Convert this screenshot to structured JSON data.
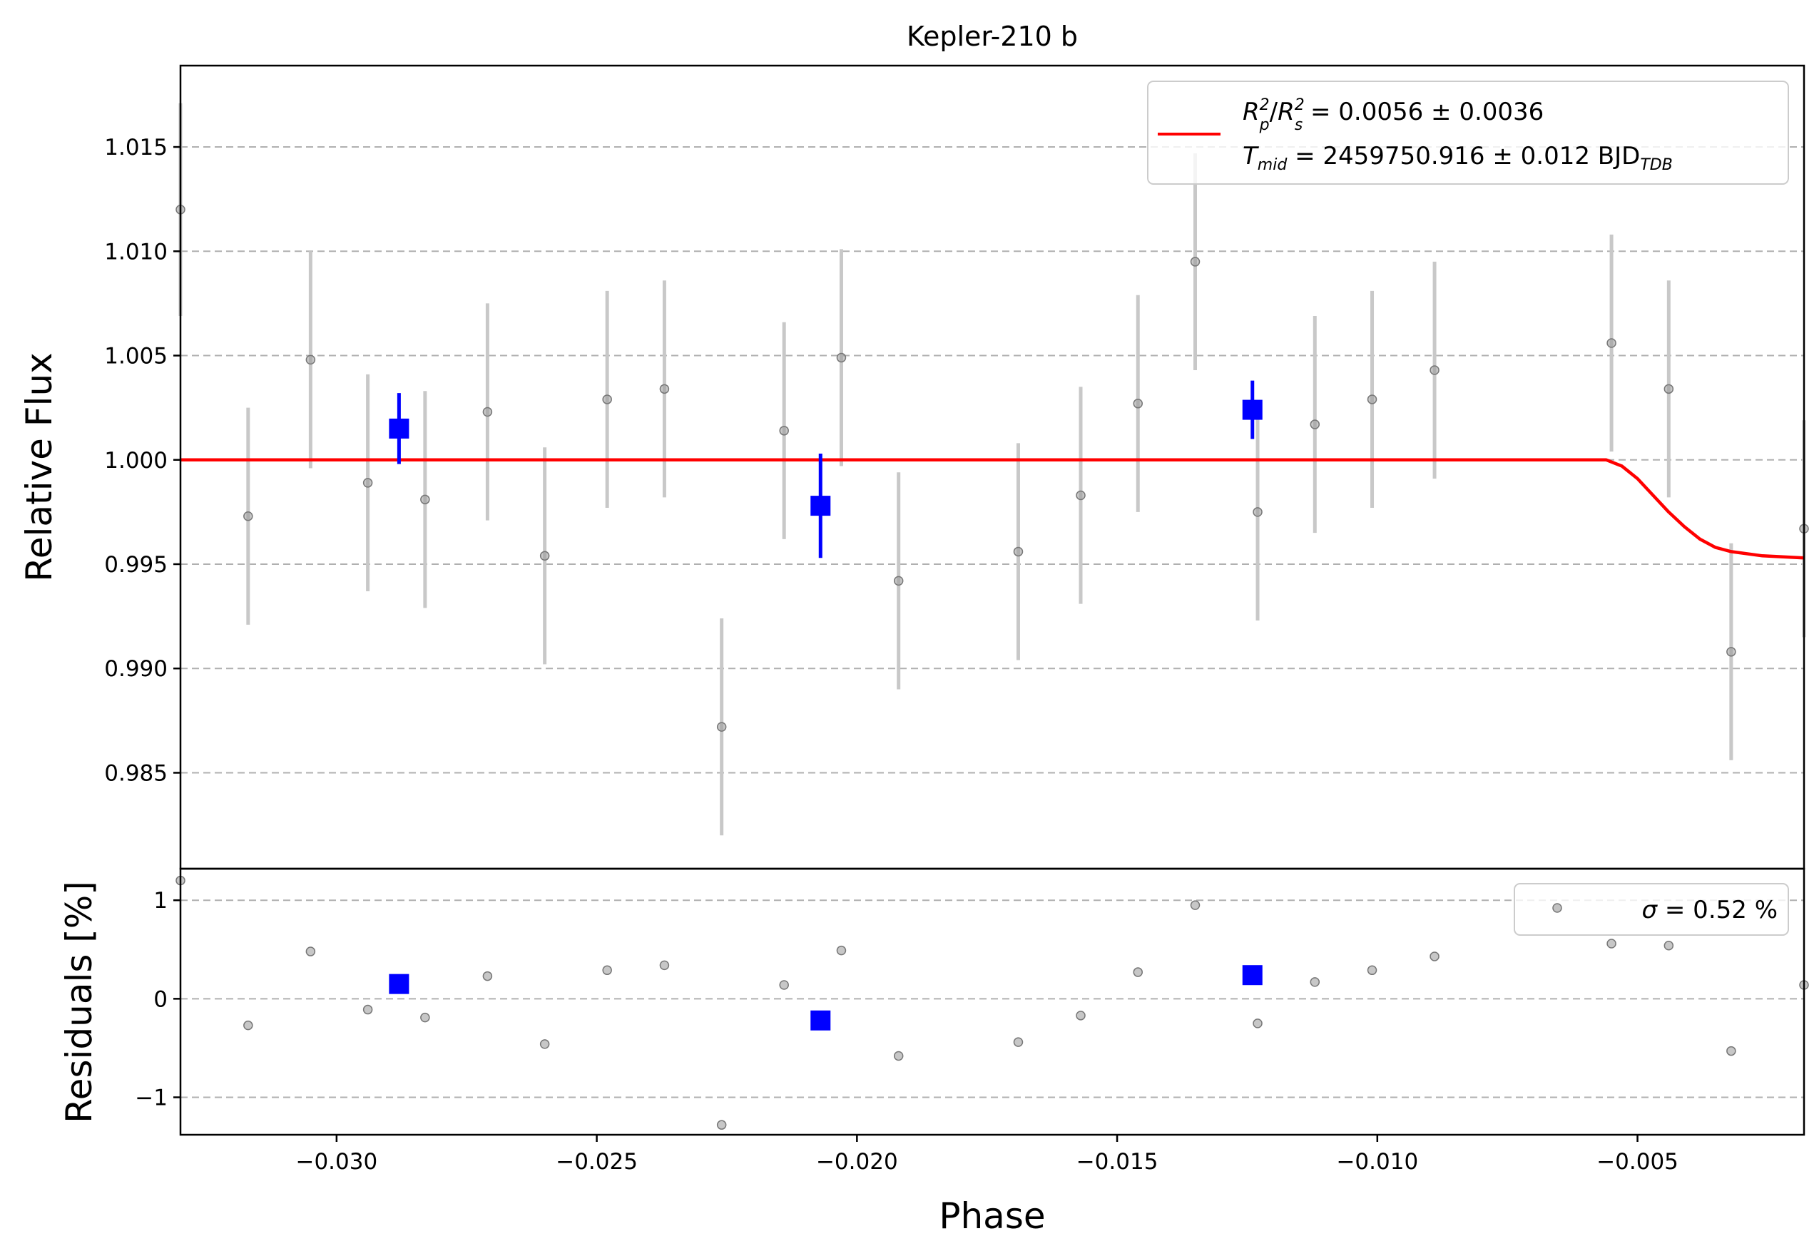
{
  "chart_data": [
    {
      "type": "scatter",
      "title": "Kepler-210 b",
      "xlabel": "",
      "ylabel": "Relative Flux",
      "xlim": [
        -0.033,
        -0.0018
      ],
      "ylim": [
        0.9804,
        1.0189
      ],
      "yticks": [
        0.985,
        0.99,
        0.995,
        1.0,
        1.005,
        1.01,
        1.015
      ],
      "ytick_labels": [
        "0.985",
        "0.990",
        "0.995",
        "1.000",
        "1.005",
        "1.010",
        "1.015"
      ],
      "grid": "horizontal-dashed",
      "legend_position": "top-right",
      "legend": {
        "line1": {
          "a": "R",
          "a_sup": "2",
          "a_sub": "p",
          "slash": "/",
          "b": "R",
          "b_sup": "2",
          "b_sub": "s",
          "value": " = 0.0056 ± 0.0036"
        },
        "line2": {
          "t": "T",
          "t_sub": "mid",
          "value": " = 2459750.916 ± 0.012 BJD",
          "value_sub": "TDB"
        }
      },
      "data_points": {
        "color": "#999999",
        "points": [
          {
            "x": -0.033,
            "y": 1.012,
            "err": 0.0051
          },
          {
            "x": -0.0317,
            "y": 0.9973,
            "err": 0.0052
          },
          {
            "x": -0.0305,
            "y": 1.0048,
            "err": 0.0052
          },
          {
            "x": -0.0294,
            "y": 0.9989,
            "err": 0.0052
          },
          {
            "x": -0.0283,
            "y": 0.9981,
            "err": 0.0052
          },
          {
            "x": -0.0271,
            "y": 1.0023,
            "err": 0.0052
          },
          {
            "x": -0.026,
            "y": 0.9954,
            "err": 0.0052
          },
          {
            "x": -0.0248,
            "y": 1.0029,
            "err": 0.0052
          },
          {
            "x": -0.0237,
            "y": 1.0034,
            "err": 0.0052
          },
          {
            "x": -0.0226,
            "y": 0.9872,
            "err": 0.0052
          },
          {
            "x": -0.0214,
            "y": 1.0014,
            "err": 0.0052
          },
          {
            "x": -0.0203,
            "y": 1.0049,
            "err": 0.0052
          },
          {
            "x": -0.0192,
            "y": 0.9942,
            "err": 0.0052
          },
          {
            "x": -0.0169,
            "y": 0.9956,
            "err": 0.0052
          },
          {
            "x": -0.0157,
            "y": 0.9983,
            "err": 0.0052
          },
          {
            "x": -0.0146,
            "y": 1.0027,
            "err": 0.0052
          },
          {
            "x": -0.0135,
            "y": 1.0095,
            "err": 0.0052
          },
          {
            "x": -0.0123,
            "y": 0.9975,
            "err": 0.0052
          },
          {
            "x": -0.0112,
            "y": 1.0017,
            "err": 0.0052
          },
          {
            "x": -0.0101,
            "y": 1.0029,
            "err": 0.0052
          },
          {
            "x": -0.0089,
            "y": 1.0043,
            "err": 0.0052
          },
          {
            "x": -0.0055,
            "y": 1.0056,
            "err": 0.0052
          },
          {
            "x": -0.0044,
            "y": 1.0034,
            "err": 0.0052
          },
          {
            "x": -0.0032,
            "y": 0.9908,
            "err": 0.0052
          },
          {
            "x": -0.0018,
            "y": 0.9967,
            "err": 0.0052
          }
        ]
      },
      "binned_points": {
        "color": "#0000ff",
        "points": [
          {
            "x": -0.0288,
            "y": 1.0015,
            "err": 0.0017
          },
          {
            "x": -0.0207,
            "y": 0.9978,
            "err": 0.0025
          },
          {
            "x": -0.0124,
            "y": 1.0024,
            "err": 0.0014
          }
        ]
      },
      "model": {
        "color": "#ff0000",
        "points": [
          [
            -0.033,
            1.0
          ],
          [
            -0.006,
            1.0
          ],
          [
            -0.0056,
            1.0
          ],
          [
            -0.0053,
            0.9997
          ],
          [
            -0.005,
            0.9991
          ],
          [
            -0.0047,
            0.9983
          ],
          [
            -0.0044,
            0.9975
          ],
          [
            -0.0041,
            0.9968
          ],
          [
            -0.0038,
            0.9962
          ],
          [
            -0.0035,
            0.9958
          ],
          [
            -0.0032,
            0.9956
          ],
          [
            -0.0026,
            0.9954
          ],
          [
            -0.0018,
            0.9953
          ]
        ]
      }
    },
    {
      "type": "scatter",
      "title": "",
      "xlabel": "Phase",
      "ylabel": "Residuals [%]",
      "xlim": [
        -0.033,
        -0.0018
      ],
      "ylim": [
        -1.38,
        1.32
      ],
      "xticks": [
        -0.03,
        -0.025,
        -0.02,
        -0.015,
        -0.01,
        -0.005
      ],
      "xtick_labels": [
        "−0.030",
        "−0.025",
        "−0.020",
        "−0.015",
        "−0.010",
        "−0.005"
      ],
      "yticks": [
        -1,
        0,
        1
      ],
      "ytick_labels": [
        "−1",
        "0",
        "1"
      ],
      "grid": "horizontal-dashed",
      "legend_position": "top-right",
      "legend": {
        "sigma": "σ",
        "value": " = 0.52 %"
      },
      "data_points": {
        "color": "#999999",
        "points": [
          {
            "x": -0.033,
            "y": 1.2
          },
          {
            "x": -0.0317,
            "y": -0.27
          },
          {
            "x": -0.0305,
            "y": 0.48
          },
          {
            "x": -0.0294,
            "y": -0.11
          },
          {
            "x": -0.0283,
            "y": -0.19
          },
          {
            "x": -0.0271,
            "y": 0.23
          },
          {
            "x": -0.026,
            "y": -0.46
          },
          {
            "x": -0.0248,
            "y": 0.29
          },
          {
            "x": -0.0237,
            "y": 0.34
          },
          {
            "x": -0.0226,
            "y": -1.28
          },
          {
            "x": -0.0214,
            "y": 0.14
          },
          {
            "x": -0.0203,
            "y": 0.49
          },
          {
            "x": -0.0192,
            "y": -0.58
          },
          {
            "x": -0.0169,
            "y": -0.44
          },
          {
            "x": -0.0157,
            "y": -0.17
          },
          {
            "x": -0.0146,
            "y": 0.27
          },
          {
            "x": -0.0135,
            "y": 0.95
          },
          {
            "x": -0.0123,
            "y": -0.25
          },
          {
            "x": -0.0112,
            "y": 0.17
          },
          {
            "x": -0.0101,
            "y": 0.29
          },
          {
            "x": -0.0089,
            "y": 0.43
          },
          {
            "x": -0.0055,
            "y": 0.56
          },
          {
            "x": -0.0044,
            "y": 0.54
          },
          {
            "x": -0.0032,
            "y": -0.53
          },
          {
            "x": -0.0018,
            "y": 0.14
          }
        ]
      },
      "binned_points": {
        "color": "#0000ff",
        "points": [
          {
            "x": -0.0288,
            "y": 0.15
          },
          {
            "x": -0.0207,
            "y": -0.22
          },
          {
            "x": -0.0124,
            "y": 0.24
          }
        ]
      }
    }
  ]
}
